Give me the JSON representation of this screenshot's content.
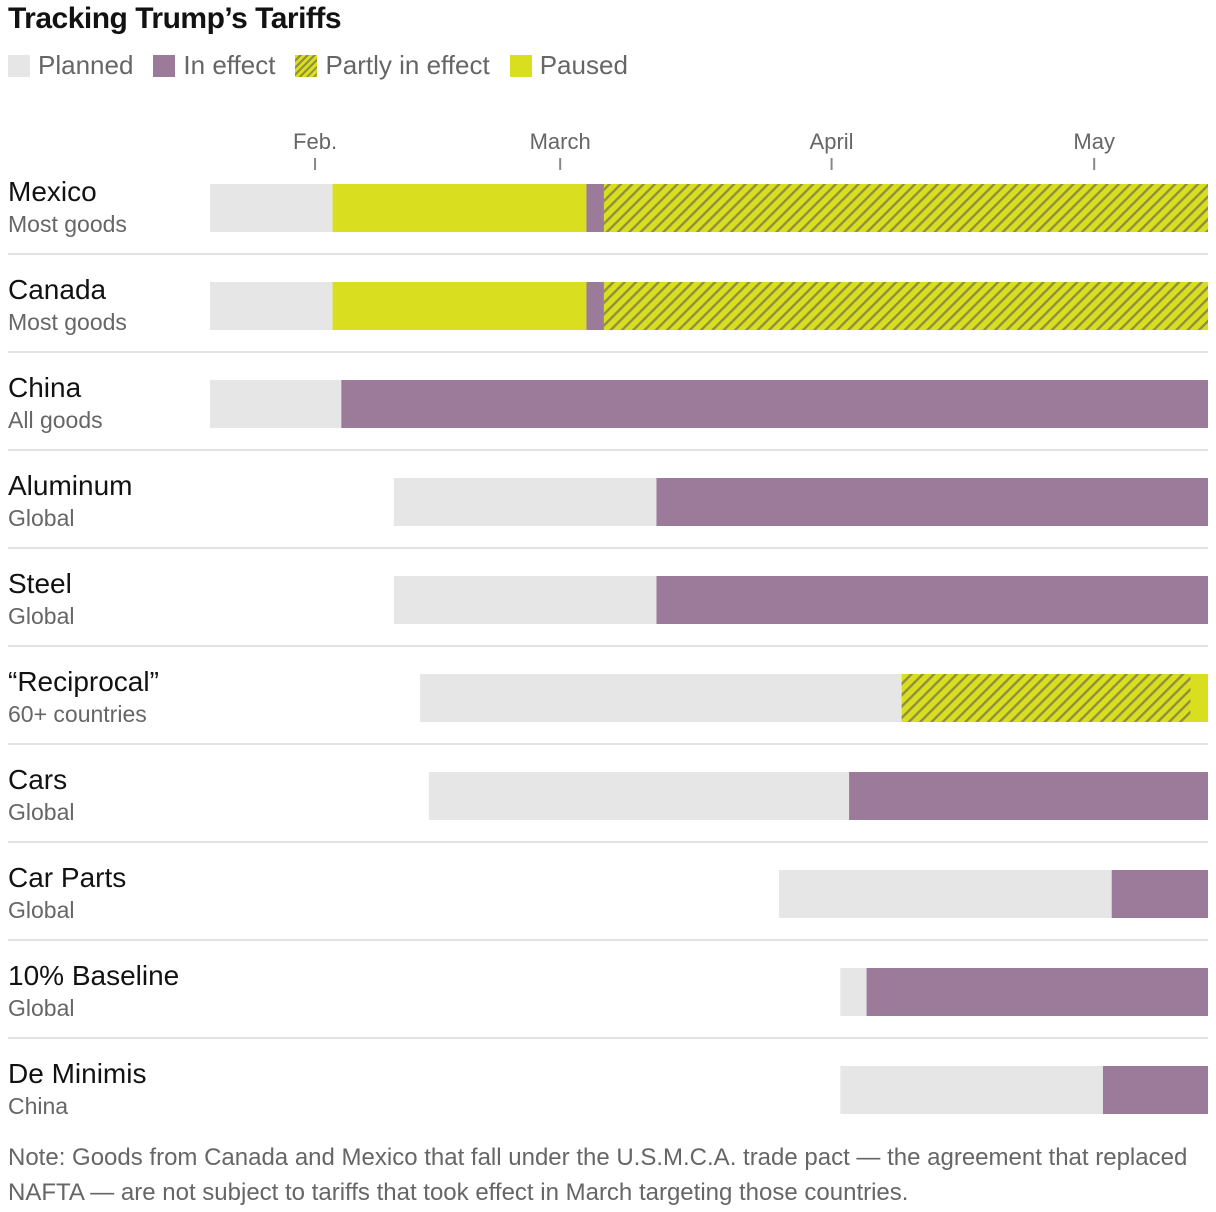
{
  "chart_data": {
    "type": "bar",
    "subtype": "timeline-gantt",
    "title": "Tracking Trump’s Tariffs",
    "legend": [
      {
        "key": "planned",
        "label": "Planned",
        "color": "#e6e6e6"
      },
      {
        "key": "in_effect",
        "label": "In effect",
        "color": "#9b7a9a"
      },
      {
        "key": "partly",
        "label": "Partly in effect",
        "color": "#d9df1f",
        "pattern": "hatch"
      },
      {
        "key": "paused",
        "label": "Paused",
        "color": "#d9df1f"
      }
    ],
    "x_axis": {
      "ticks": [
        {
          "label": "Feb.",
          "date": "2025-02-01"
        },
        {
          "label": "March",
          "date": "2025-03-01"
        },
        {
          "label": "April",
          "date": "2025-04-01"
        },
        {
          "label": "May",
          "date": "2025-05-01"
        }
      ],
      "range": [
        "2025-01-20",
        "2025-05-14"
      ]
    },
    "rows": [
      {
        "name": "Mexico",
        "sub": "Most goods",
        "segments": [
          {
            "status": "planned",
            "start": "2025-01-20",
            "end": "2025-02-03"
          },
          {
            "status": "paused",
            "start": "2025-02-03",
            "end": "2025-03-04"
          },
          {
            "status": "in_effect",
            "start": "2025-03-04",
            "end": "2025-03-06"
          },
          {
            "status": "partly",
            "start": "2025-03-06",
            "end": "2025-05-14"
          }
        ]
      },
      {
        "name": "Canada",
        "sub": "Most goods",
        "segments": [
          {
            "status": "planned",
            "start": "2025-01-20",
            "end": "2025-02-03"
          },
          {
            "status": "paused",
            "start": "2025-02-03",
            "end": "2025-03-04"
          },
          {
            "status": "in_effect",
            "start": "2025-03-04",
            "end": "2025-03-06"
          },
          {
            "status": "partly",
            "start": "2025-03-06",
            "end": "2025-05-14"
          }
        ]
      },
      {
        "name": "China",
        "sub": "All goods",
        "segments": [
          {
            "status": "planned",
            "start": "2025-01-20",
            "end": "2025-02-04"
          },
          {
            "status": "in_effect",
            "start": "2025-02-04",
            "end": "2025-05-14"
          }
        ]
      },
      {
        "name": "Aluminum",
        "sub": "Global",
        "segments": [
          {
            "status": "planned",
            "start": "2025-02-10",
            "end": "2025-03-12"
          },
          {
            "status": "in_effect",
            "start": "2025-03-12",
            "end": "2025-05-14"
          }
        ]
      },
      {
        "name": "Steel",
        "sub": "Global",
        "segments": [
          {
            "status": "planned",
            "start": "2025-02-10",
            "end": "2025-03-12"
          },
          {
            "status": "in_effect",
            "start": "2025-03-12",
            "end": "2025-05-14"
          }
        ]
      },
      {
        "name": "“Reciprocal”",
        "sub": "60+ countries",
        "segments": [
          {
            "status": "planned",
            "start": "2025-02-13",
            "end": "2025-04-09"
          },
          {
            "status": "partly",
            "start": "2025-04-09",
            "end": "2025-05-12"
          },
          {
            "status": "paused",
            "start": "2025-05-12",
            "end": "2025-05-14"
          }
        ]
      },
      {
        "name": "Cars",
        "sub": "Global",
        "segments": [
          {
            "status": "planned",
            "start": "2025-02-14",
            "end": "2025-04-03"
          },
          {
            "status": "in_effect",
            "start": "2025-04-03",
            "end": "2025-05-14"
          }
        ]
      },
      {
        "name": "Car Parts",
        "sub": "Global",
        "segments": [
          {
            "status": "planned",
            "start": "2025-03-26",
            "end": "2025-05-03"
          },
          {
            "status": "in_effect",
            "start": "2025-05-03",
            "end": "2025-05-14"
          }
        ]
      },
      {
        "name": "10% Baseline",
        "sub": "Global",
        "segments": [
          {
            "status": "planned",
            "start": "2025-04-02",
            "end": "2025-04-05"
          },
          {
            "status": "in_effect",
            "start": "2025-04-05",
            "end": "2025-05-14"
          }
        ]
      },
      {
        "name": "De Minimis",
        "sub": "China",
        "segments": [
          {
            "status": "planned",
            "start": "2025-04-02",
            "end": "2025-05-02"
          },
          {
            "status": "in_effect",
            "start": "2025-05-02",
            "end": "2025-05-14"
          }
        ]
      }
    ],
    "note": "Note: Goods from Canada and Mexico that fall under the U.S.M.C.A. trade pact — the agreement that replaced NAFTA — are not subject to tariffs that took effect in March targeting those countries."
  }
}
